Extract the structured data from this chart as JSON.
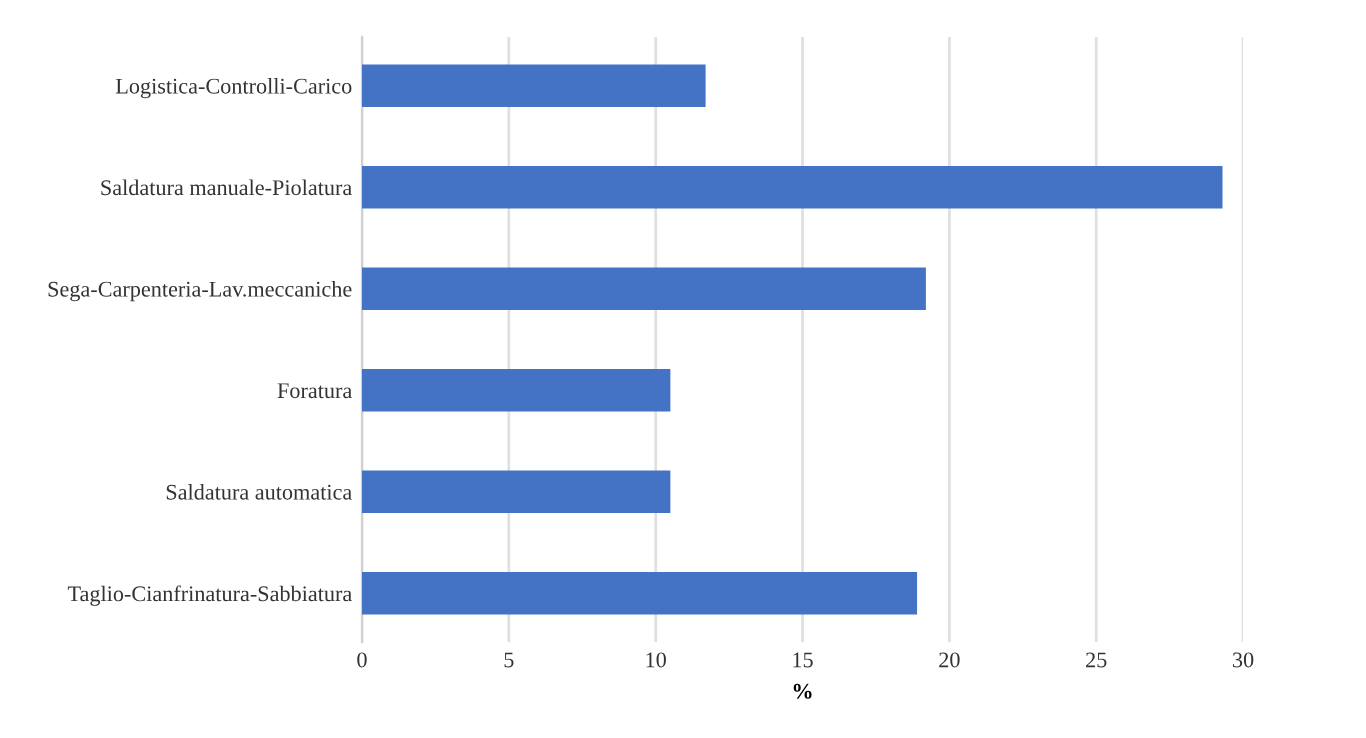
{
  "chart_data": {
    "type": "bar",
    "orientation": "horizontal",
    "xlabel": "%",
    "categories": [
      "Logistica-Controlli-Carico",
      "Saldatura manuale-Piolatura",
      "Sega-Carpenteria-Lav.meccaniche",
      "Foratura",
      "Saldatura automatica",
      "Taglio-Cianfrinatura-Sabbiatura"
    ],
    "values": [
      11.7,
      29.3,
      19.2,
      10.5,
      10.5,
      18.9
    ],
    "color": "#4472c4",
    "xlim": [
      0,
      30
    ],
    "xticks": [
      0,
      5,
      10,
      15,
      20,
      25,
      30
    ],
    "grid": "x"
  }
}
